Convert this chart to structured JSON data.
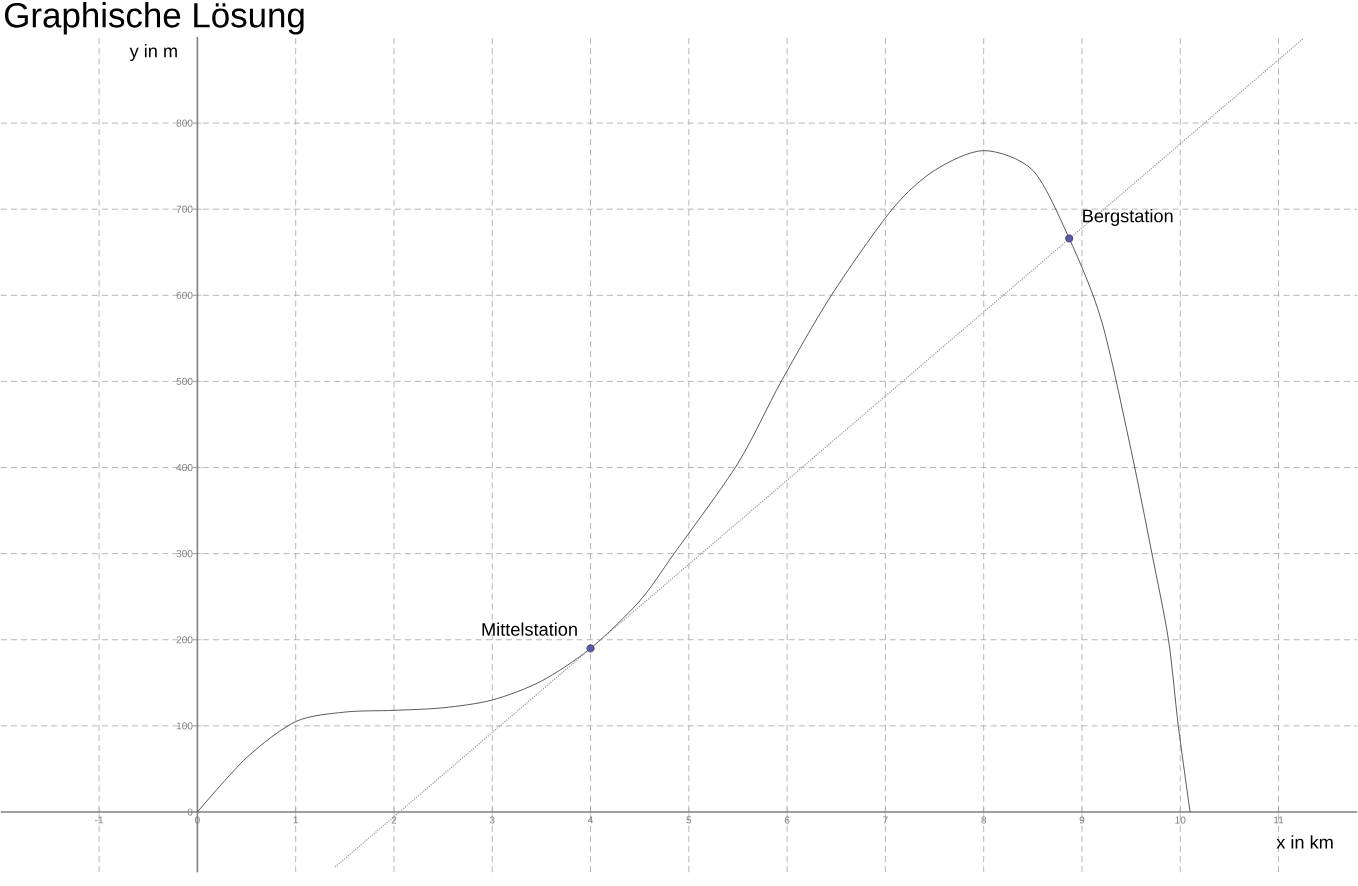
{
  "chart_data": {
    "type": "line",
    "title": "Graphische Lösung",
    "xlabel": "x in km",
    "ylabel": "y in m",
    "xlim": [
      -2,
      11.8
    ],
    "ylim": [
      -70,
      900
    ],
    "xticks": [
      -1,
      0,
      1,
      2,
      3,
      4,
      5,
      6,
      7,
      8,
      9,
      10,
      11
    ],
    "yticks": [
      0,
      100,
      200,
      300,
      400,
      500,
      600,
      700,
      800
    ],
    "grid": true,
    "series": [
      {
        "color": "#333333",
        "line_style": "solid",
        "x": [
          0,
          0.5,
          1,
          1.5,
          2,
          2.5,
          3,
          3.5,
          4,
          4.5,
          4.85,
          5.5,
          5.94,
          6.45,
          7.07,
          7.5,
          8,
          8.5,
          8.87,
          9.2,
          9.5,
          9.71,
          9.88,
          9.98,
          10.1
        ],
        "values": [
          0,
          63,
          105,
          116,
          118,
          121,
          130,
          152,
          190,
          245,
          300,
          405,
          500,
          600,
          700,
          745,
          768,
          745,
          666,
          570,
          420,
          301,
          200,
          100,
          0
        ]
      },
      {
        "type": "line",
        "color": "#999999",
        "line_style": "dotted",
        "x": [
          1.4,
          11.25
        ],
        "values": [
          -64,
          898
        ]
      },
      {
        "type": "scatter",
        "color": "#5b5ba8",
        "marker": "circle",
        "x": [
          4,
          8.87
        ],
        "values": [
          190,
          666
        ]
      }
    ],
    "annotations": [
      {
        "text": "Mittelstation",
        "x": 4,
        "y": 190
      },
      {
        "text": "Bergstation",
        "x": 8.87,
        "y": 666
      }
    ]
  }
}
